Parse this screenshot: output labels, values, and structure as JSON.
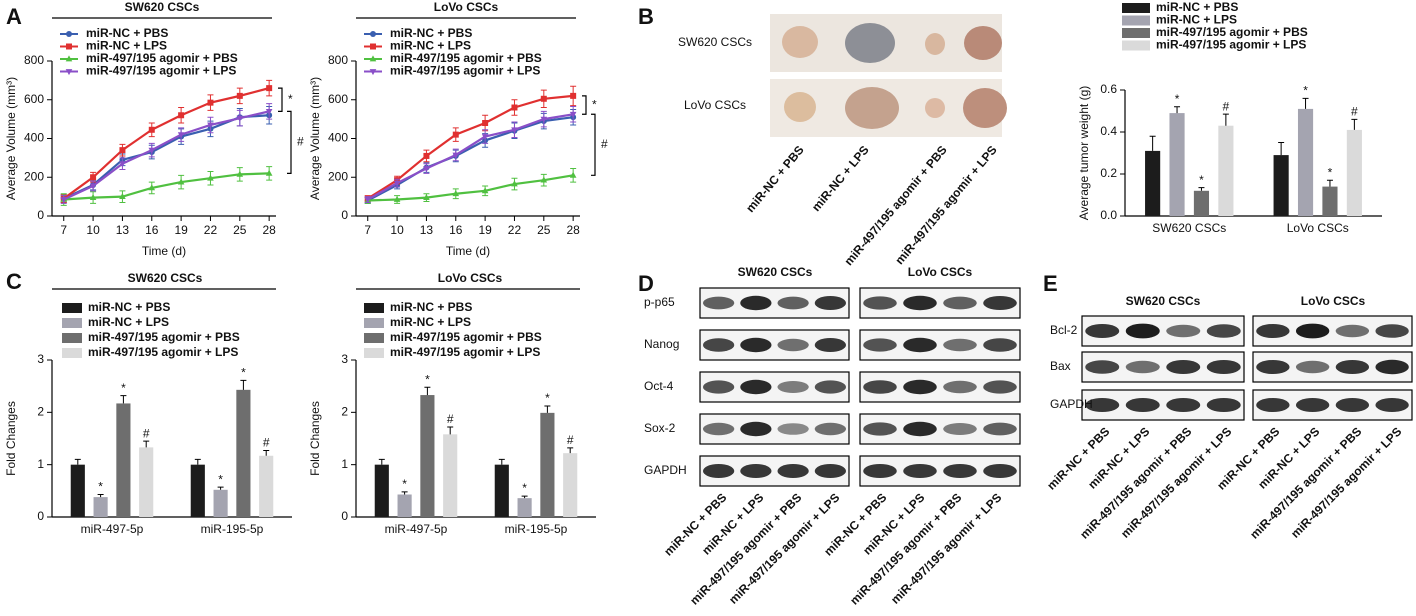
{
  "panel_labels": [
    "A",
    "B",
    "C",
    "D",
    "E"
  ],
  "chart_data": [
    {
      "type": "line",
      "title": "SW620 CSCs",
      "xlabel": "Time (d)",
      "ylabel": "Average Volume (mm³)",
      "x": [
        7,
        10,
        13,
        16,
        19,
        22,
        25,
        28
      ],
      "xlim": [
        5.8,
        28.7
      ],
      "xticks": [
        7,
        10,
        13,
        16,
        19,
        22,
        25,
        28
      ],
      "ylim": [
        0,
        800
      ],
      "yticks": [
        0,
        200,
        400,
        600,
        800
      ],
      "legend": "top-left",
      "series": [
        {
          "name": "miR-NC + PBS",
          "color": "#3a5fb0",
          "marker": "circle",
          "values": [
            90,
            160,
            290,
            330,
            410,
            450,
            510,
            520
          ],
          "errors": [
            20,
            25,
            30,
            35,
            40,
            40,
            45,
            45
          ]
        },
        {
          "name": "miR-NC + LPS",
          "color": "#e03030",
          "marker": "square",
          "values": [
            90,
            200,
            340,
            445,
            520,
            585,
            620,
            660
          ],
          "errors": [
            20,
            25,
            30,
            35,
            40,
            40,
            40,
            40
          ]
        },
        {
          "name": "miR-497/195 agomir + PBS",
          "color": "#50c040",
          "marker": "triangle",
          "values": [
            85,
            95,
            100,
            145,
            175,
            195,
            215,
            220
          ],
          "errors": [
            30,
            30,
            30,
            30,
            35,
            35,
            35,
            35
          ]
        },
        {
          "name": "miR-497/195 agomir + LPS",
          "color": "#8a4fc8",
          "marker": "triangle-down",
          "values": [
            85,
            155,
            270,
            340,
            420,
            470,
            505,
            540
          ],
          "errors": [
            20,
            25,
            30,
            35,
            35,
            40,
            40,
            40
          ]
        }
      ],
      "annotations": [
        "*",
        "#"
      ]
    },
    {
      "type": "line",
      "title": "LoVo CSCs",
      "xlabel": "Time (d)",
      "ylabel": "Average Volume (mm³)",
      "x": [
        7,
        10,
        13,
        16,
        19,
        22,
        25,
        28
      ],
      "xlim": [
        5.8,
        28.7
      ],
      "xticks": [
        7,
        10,
        13,
        16,
        19,
        22,
        25,
        28
      ],
      "ylim": [
        0,
        800
      ],
      "yticks": [
        0,
        200,
        400,
        600,
        800
      ],
      "legend": "top-left",
      "series": [
        {
          "name": "miR-NC + PBS",
          "color": "#3a5fb0",
          "marker": "circle",
          "values": [
            80,
            160,
            250,
            310,
            390,
            440,
            490,
            510
          ],
          "errors": [
            15,
            20,
            25,
            30,
            35,
            40,
            40,
            40
          ]
        },
        {
          "name": "miR-NC + LPS",
          "color": "#e03030",
          "marker": "square",
          "values": [
            90,
            185,
            310,
            420,
            480,
            560,
            605,
            620
          ],
          "errors": [
            15,
            20,
            30,
            35,
            40,
            40,
            45,
            50
          ]
        },
        {
          "name": "miR-497/195 agomir + PBS",
          "color": "#50c040",
          "marker": "triangle",
          "values": [
            80,
            85,
            95,
            115,
            130,
            165,
            185,
            210
          ],
          "errors": [
            15,
            20,
            20,
            25,
            25,
            30,
            30,
            35
          ]
        },
        {
          "name": "miR-497/195 agomir + LPS",
          "color": "#8a4fc8",
          "marker": "triangle-down",
          "values": [
            85,
            170,
            245,
            315,
            410,
            445,
            500,
            525
          ],
          "errors": [
            15,
            20,
            25,
            30,
            35,
            40,
            40,
            40
          ]
        }
      ],
      "annotations": [
        "*",
        "#"
      ]
    },
    {
      "type": "bar",
      "ylabel": "Average tumor weight (g)",
      "categories": [
        "SW620 CSCs",
        "LoVo CSCs"
      ],
      "ylim": [
        0,
        0.6
      ],
      "yticks": [
        {
          "value": 0,
          "label": "0.0"
        },
        0.2,
        0.4,
        0.6
      ],
      "legend": "top",
      "series": [
        {
          "name": "miR-NC + PBS",
          "color": "#1c1c1c",
          "values": [
            0.31,
            0.29
          ],
          "errors": [
            0.07,
            0.06
          ]
        },
        {
          "name": "miR-NC + LPS",
          "color": "#a4a4b0",
          "values": [
            0.49,
            0.51
          ],
          "errors": [
            0.03,
            0.05
          ],
          "annotations": [
            "*",
            "*"
          ]
        },
        {
          "name": "miR-497/195 agomir + PBS",
          "color": "#6e6e6e",
          "values": [
            0.12,
            0.14
          ],
          "errors": [
            0.015,
            0.03
          ],
          "annotations": [
            "*",
            "*"
          ]
        },
        {
          "name": "miR-497/195 agomir + LPS",
          "color": "#dadada",
          "values": [
            0.43,
            0.41
          ],
          "errors": [
            0.055,
            0.05
          ],
          "annotations": [
            "#",
            "#"
          ]
        }
      ]
    },
    {
      "type": "bar",
      "title": "SW620 CSCs",
      "ylabel": "Fold Changes",
      "categories": [
        "miR-497-5p",
        "miR-195-5p"
      ],
      "ylim": [
        0,
        3
      ],
      "yticks": [
        0,
        1,
        2,
        3
      ],
      "legend": "top-left",
      "series": [
        {
          "name": "miR-NC + PBS",
          "color": "#1c1c1c",
          "values": [
            1.0,
            1.0
          ],
          "errors": [
            0.1,
            0.1
          ]
        },
        {
          "name": "miR-NC + LPS",
          "color": "#a4a4b0",
          "values": [
            0.38,
            0.52
          ],
          "errors": [
            0.05,
            0.05
          ],
          "annotations": [
            "*",
            "*"
          ]
        },
        {
          "name": "miR-497/195 agomir + PBS",
          "color": "#6e6e6e",
          "values": [
            2.17,
            2.43
          ],
          "errors": [
            0.15,
            0.18
          ],
          "annotations": [
            "*",
            "*"
          ]
        },
        {
          "name": "miR-497/195 agomir + LPS",
          "color": "#dadada",
          "values": [
            1.33,
            1.17
          ],
          "errors": [
            0.12,
            0.1
          ],
          "annotations": [
            "#",
            "#"
          ]
        }
      ]
    },
    {
      "type": "bar",
      "title": "LoVo CSCs",
      "ylabel": "Fold Changes",
      "categories": [
        "miR-497-5p",
        "miR-195-5p"
      ],
      "ylim": [
        0,
        3
      ],
      "yticks": [
        0,
        1,
        2,
        3
      ],
      "legend": "top-left",
      "series": [
        {
          "name": "miR-NC + PBS",
          "color": "#1c1c1c",
          "values": [
            1.0,
            1.0
          ],
          "errors": [
            0.1,
            0.1
          ]
        },
        {
          "name": "miR-NC + LPS",
          "color": "#a4a4b0",
          "values": [
            0.43,
            0.36
          ],
          "errors": [
            0.05,
            0.04
          ],
          "annotations": [
            "*",
            "*"
          ]
        },
        {
          "name": "miR-497/195 agomir + PBS",
          "color": "#6e6e6e",
          "values": [
            2.33,
            1.99
          ],
          "errors": [
            0.15,
            0.13
          ],
          "annotations": [
            "*",
            "*"
          ]
        },
        {
          "name": "miR-497/195 agomir + LPS",
          "color": "#dadada",
          "values": [
            1.58,
            1.22
          ],
          "errors": [
            0.14,
            0.1
          ],
          "annotations": [
            "#",
            "#"
          ]
        }
      ]
    }
  ],
  "panel_b": {
    "rows": [
      "SW620 CSCs",
      "LoVo CSCs"
    ],
    "columns": [
      "miR-NC + PBS",
      "miR-NC + LPS",
      "miR-497/195 agomir + PBS",
      "miR-497/195 agomir + LPS"
    ]
  },
  "panel_d": {
    "groups": [
      "SW620 CSCs",
      "LoVo CSCs"
    ],
    "rows": [
      "p-p65",
      "Nanog",
      "Oct-4",
      "Sox-2",
      "GAPDH"
    ],
    "columns": [
      "miR-NC + PBS",
      "miR-NC + LPS",
      "miR-497/195 agomir + PBS",
      "miR-497/195 agomir + LPS",
      "miR-NC + PBS",
      "miR-NC + LPS",
      "miR-497/195 agomir + PBS",
      "miR-497/195 agomir + LPS"
    ]
  },
  "panel_e": {
    "groups": [
      "SW620 CSCs",
      "LoVo CSCs"
    ],
    "rows": [
      "Bcl-2",
      "Bax",
      "GAPDH"
    ],
    "columns": [
      "miR-NC + PBS",
      "miR-NC + LPS",
      "miR-497/195 agomir + PBS",
      "miR-497/195 agomir + LPS",
      "miR-NC + PBS",
      "miR-NC + LPS",
      "miR-497/195 agomir + PBS",
      "miR-497/195 agomir + LPS"
    ]
  }
}
